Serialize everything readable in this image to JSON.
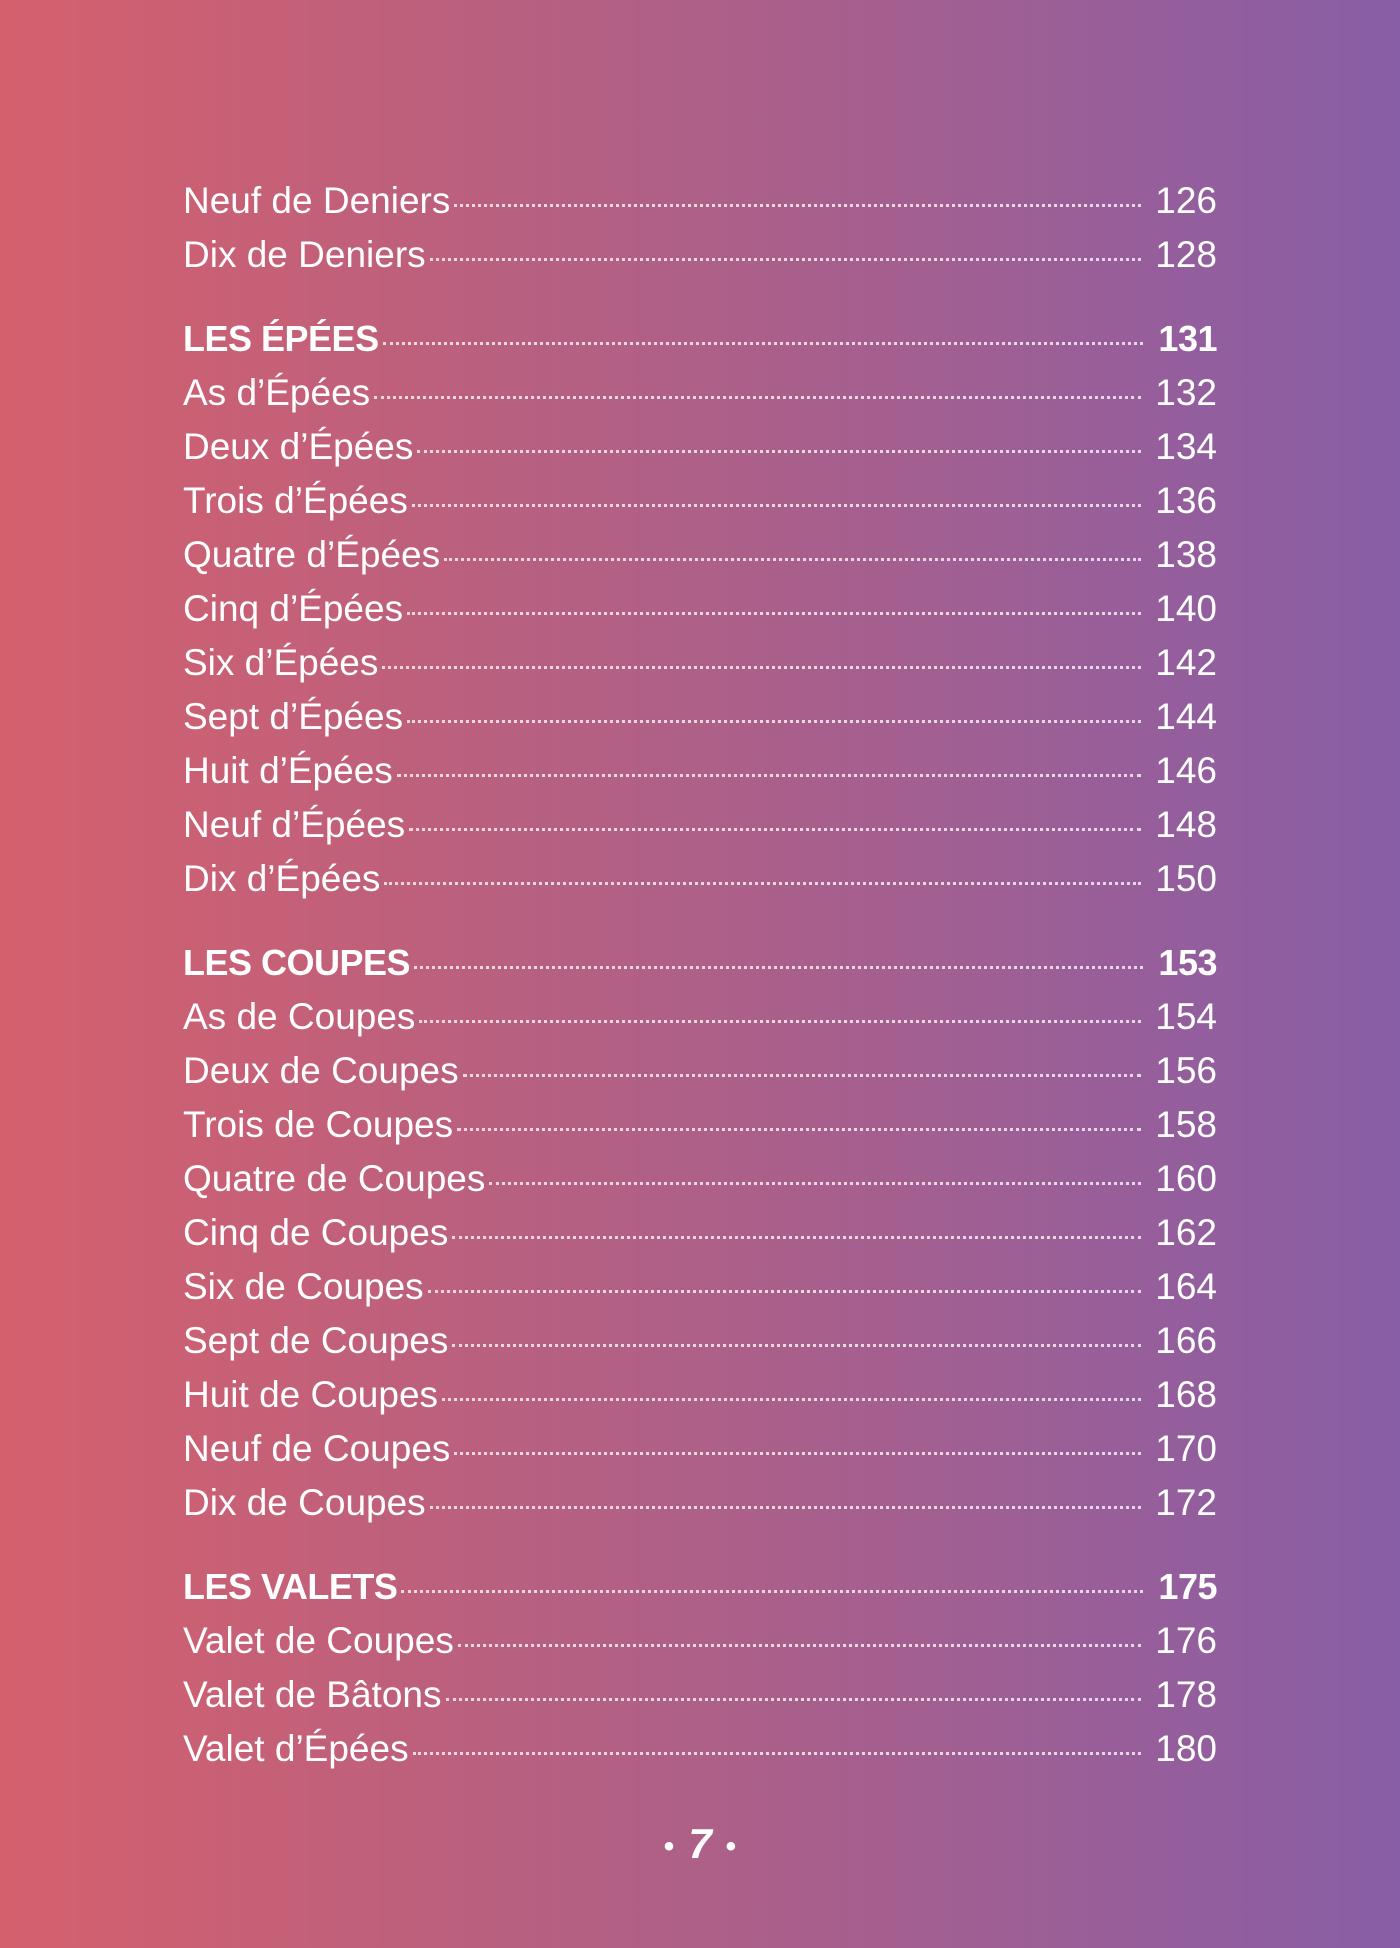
{
  "toc": {
    "entries": [
      {
        "title": "Neuf de Deniers",
        "page": "126"
      },
      {
        "title": "Dix de Deniers",
        "page": "128"
      }
    ],
    "sections": [
      {
        "heading": "LES ÉPÉES",
        "page": "131",
        "entries": [
          {
            "title": "As d’Épées",
            "page": "132"
          },
          {
            "title": "Deux d’Épées",
            "page": "134"
          },
          {
            "title": "Trois d’Épées",
            "page": "136"
          },
          {
            "title": "Quatre d’Épées",
            "page": "138"
          },
          {
            "title": "Cinq d’Épées",
            "page": "140"
          },
          {
            "title": "Six d’Épées",
            "page": "142"
          },
          {
            "title": "Sept d’Épées",
            "page": "144"
          },
          {
            "title": "Huit d’Épées",
            "page": "146"
          },
          {
            "title": "Neuf d’Épées",
            "page": "148"
          },
          {
            "title": "Dix d’Épées",
            "page": "150"
          }
        ]
      },
      {
        "heading": "LES COUPES",
        "page": "153",
        "entries": [
          {
            "title": "As de Coupes",
            "page": "154"
          },
          {
            "title": "Deux de Coupes",
            "page": "156"
          },
          {
            "title": "Trois de Coupes",
            "page": "158"
          },
          {
            "title": "Quatre de Coupes",
            "page": "160"
          },
          {
            "title": "Cinq de Coupes",
            "page": "162"
          },
          {
            "title": "Six de Coupes",
            "page": "164"
          },
          {
            "title": "Sept de Coupes",
            "page": "166"
          },
          {
            "title": "Huit de Coupes",
            "page": "168"
          },
          {
            "title": "Neuf de Coupes",
            "page": "170"
          },
          {
            "title": "Dix de Coupes",
            "page": "172"
          }
        ]
      },
      {
        "heading": "LES VALETS",
        "page": "175",
        "entries": [
          {
            "title": "Valet de Coupes",
            "page": "176"
          },
          {
            "title": "Valet de Bâtons",
            "page": "178"
          },
          {
            "title": "Valet d’Épées",
            "page": "180"
          }
        ]
      }
    ]
  },
  "footer": {
    "page_number": "7"
  }
}
